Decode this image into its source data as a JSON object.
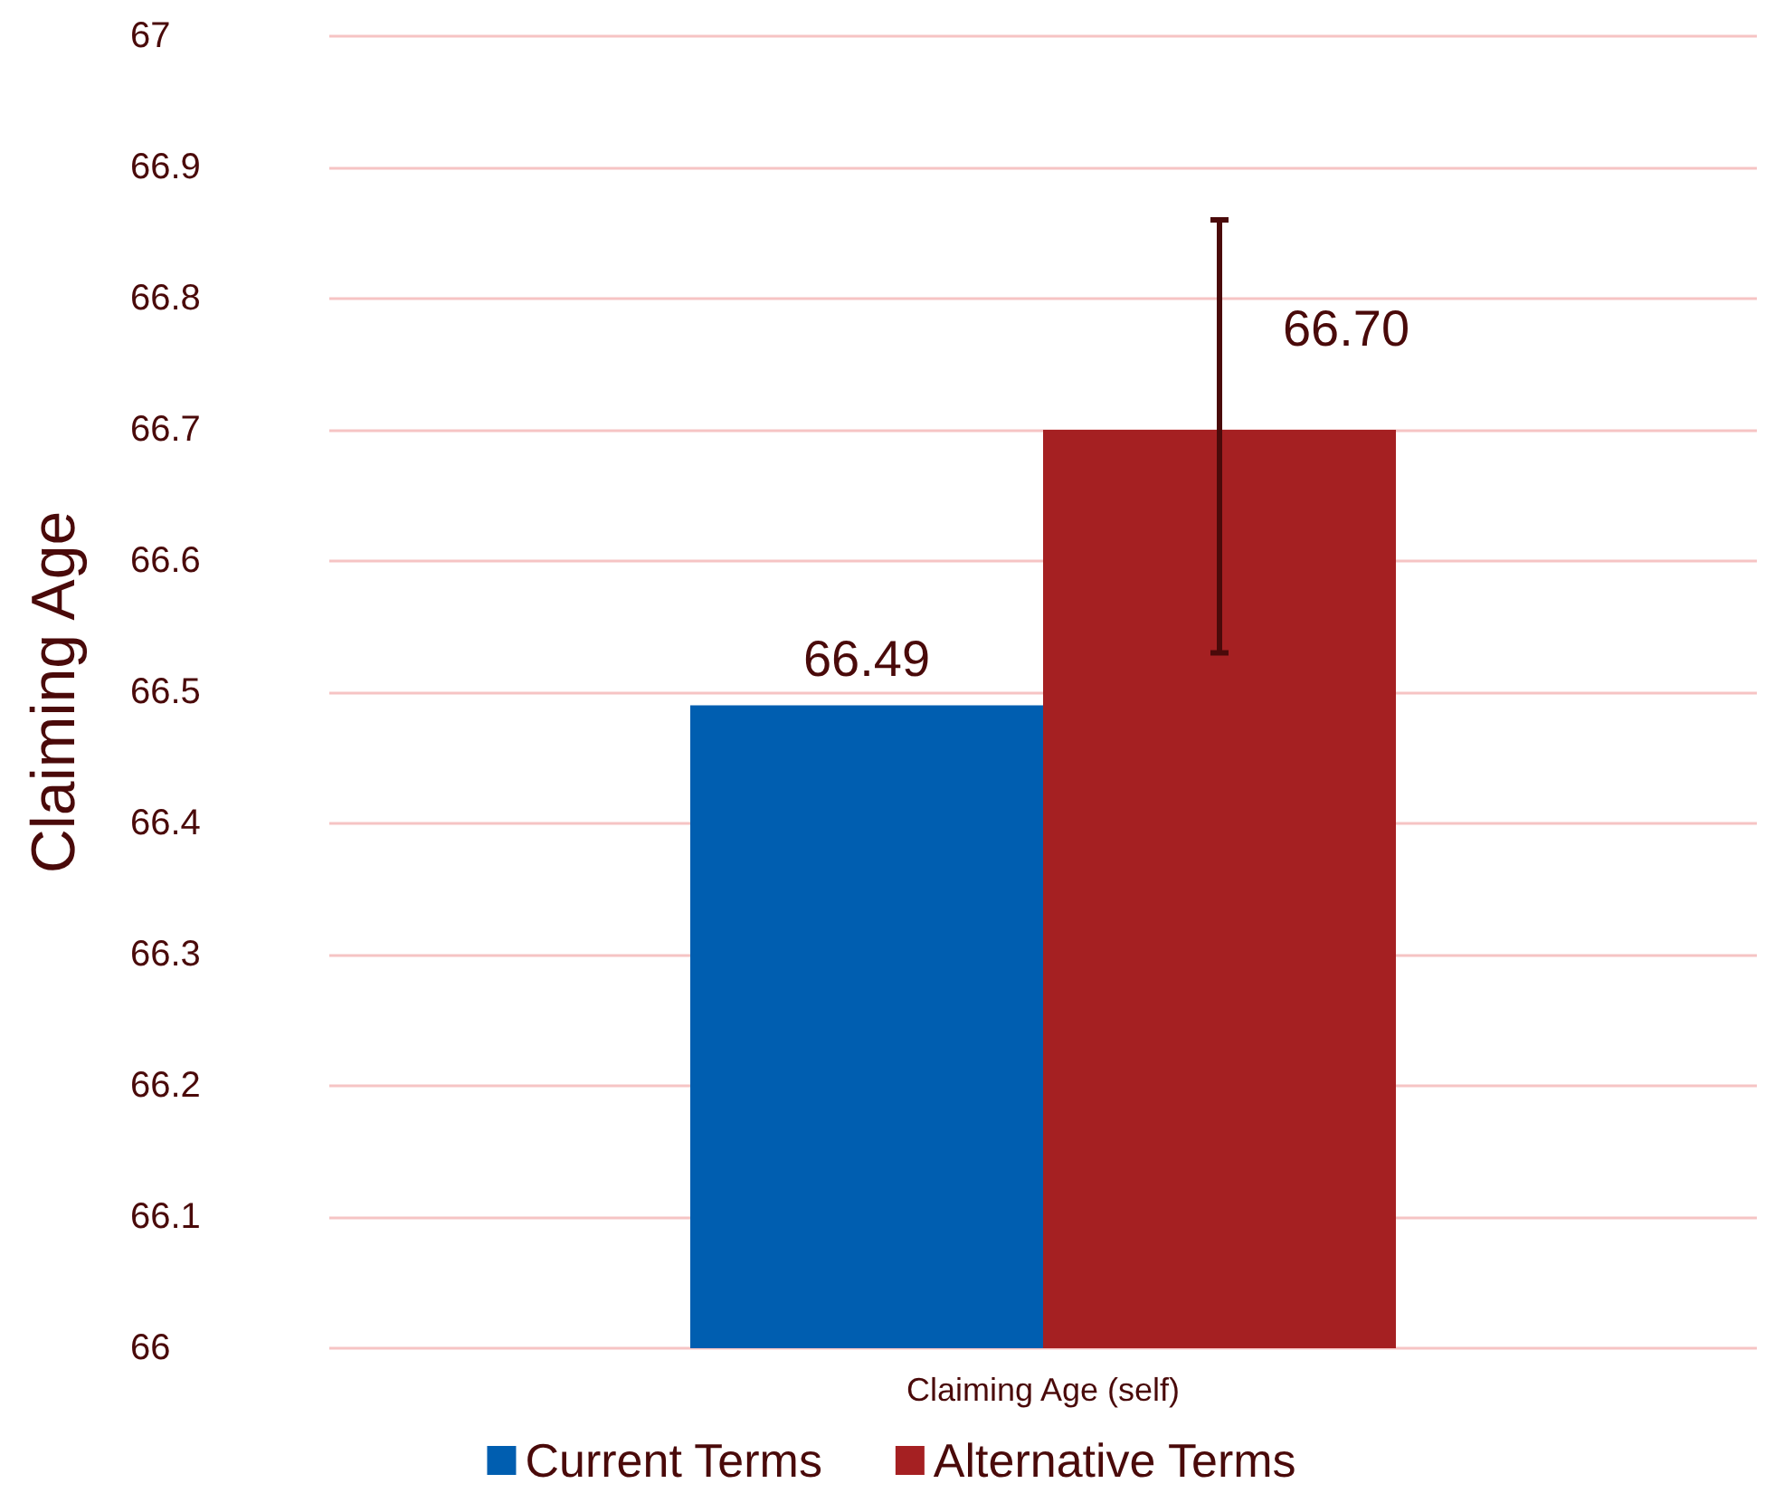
{
  "chart_data": {
    "type": "bar",
    "ylabel": "Claiming Age",
    "categories": [
      "Claiming Age (self)"
    ],
    "series": [
      {
        "name": "Current Terms",
        "color": "#005eb0",
        "values": [
          66.49
        ],
        "value_labels": [
          "66.49"
        ]
      },
      {
        "name": "Alternative Terms",
        "color": "#a52022",
        "values": [
          66.7
        ],
        "value_labels": [
          "66.70"
        ],
        "errors": [
          [
            66.53,
            66.86
          ]
        ]
      }
    ],
    "ylim": [
      66,
      67
    ],
    "yticks": [
      66,
      66.1,
      66.2,
      66.3,
      66.4,
      66.5,
      66.6,
      66.7,
      66.8,
      66.9,
      67
    ],
    "grid": "y",
    "legend": "bottom"
  }
}
